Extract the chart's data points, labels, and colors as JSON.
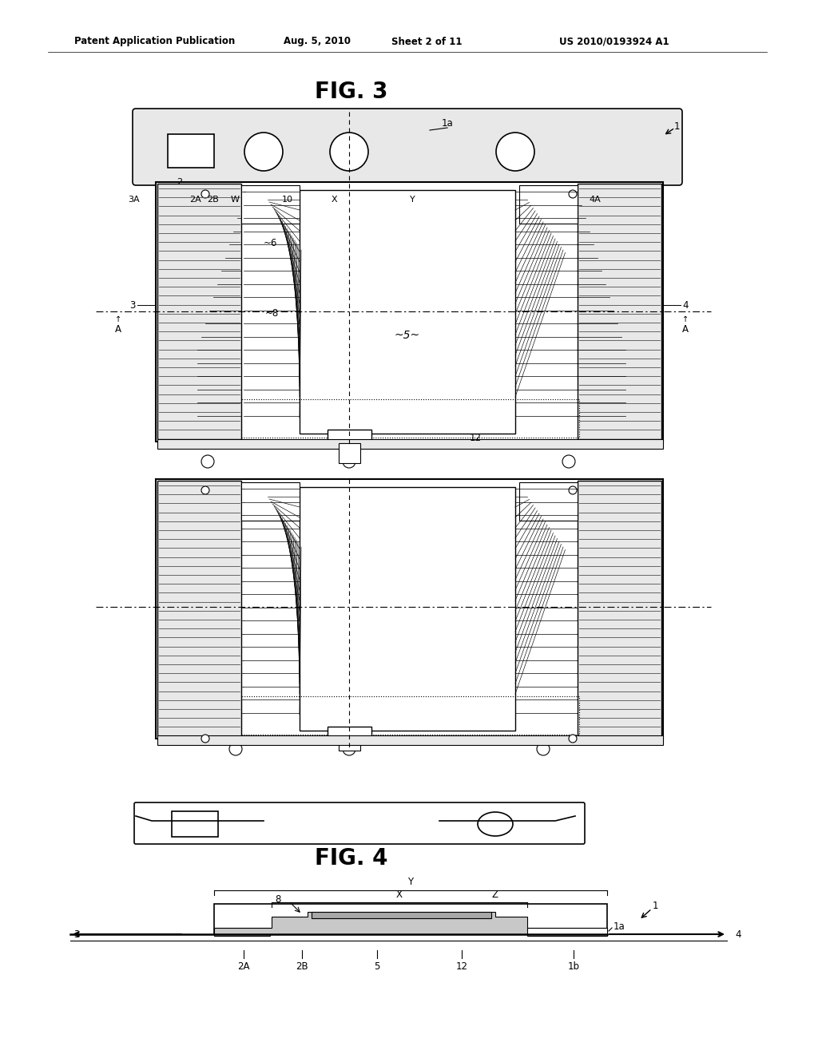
{
  "page_bg": "#ffffff",
  "header_text": "Patent Application Publication",
  "header_date": "Aug. 5, 2010",
  "header_sheet": "Sheet 2 of 11",
  "header_patent": "US 2010/0193924 A1",
  "fig3_title": "FIG. 3",
  "fig4_title": "FIG. 4",
  "gray_bg": "#d8d8d8",
  "light_gray": "#e8e8e8"
}
